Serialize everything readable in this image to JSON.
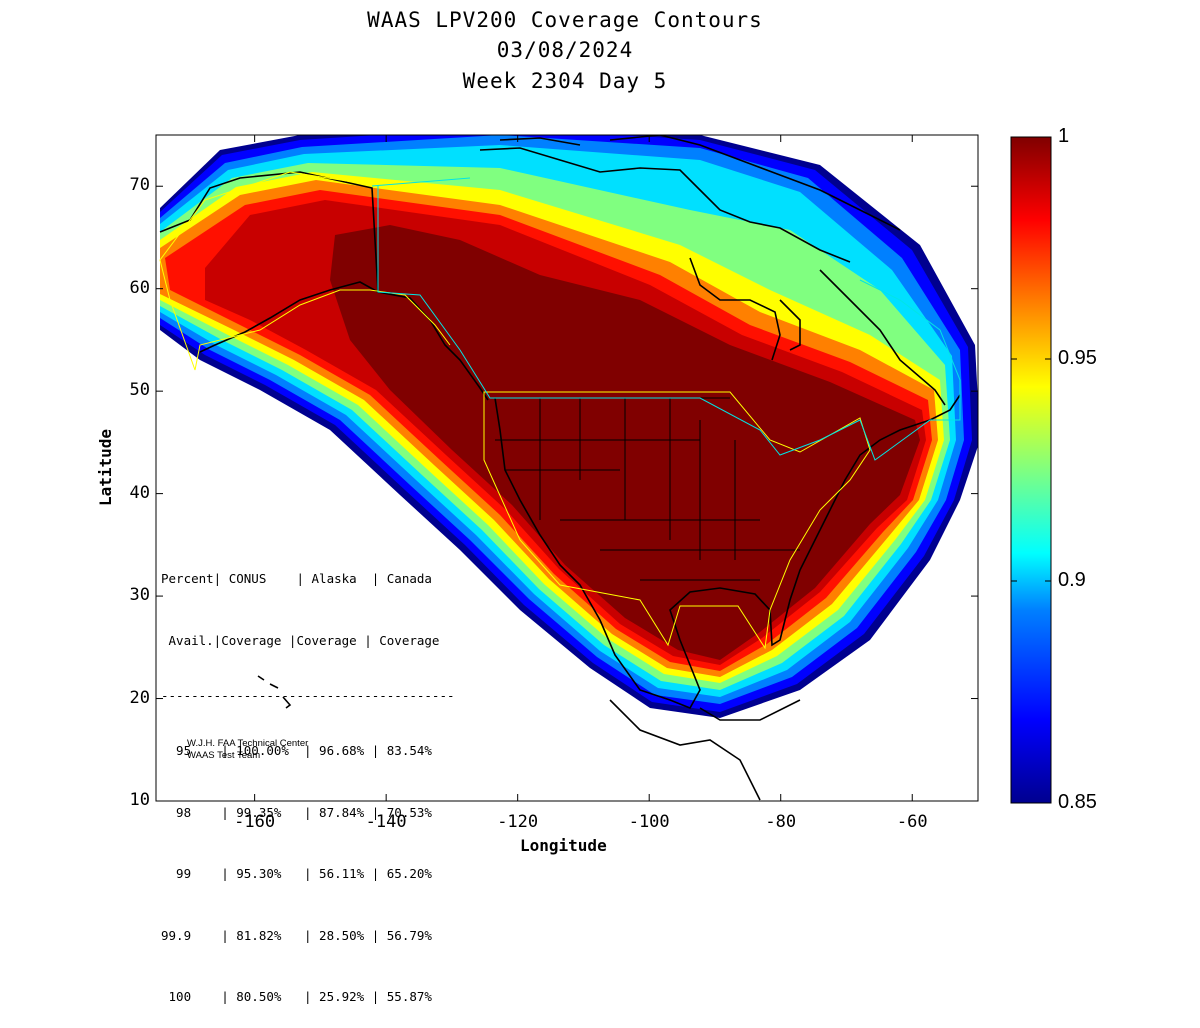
{
  "title": {
    "line1": "WAAS LPV200 Coverage Contours",
    "line2": "03/08/2024",
    "line3": "Week 2304 Day 5"
  },
  "axes": {
    "xlabel": "Longitude",
    "ylabel": "Latitude",
    "xticks": [
      "-160",
      "-140",
      "-120",
      "-100",
      "-80",
      "-60"
    ],
    "yticks": [
      "10",
      "20",
      "30",
      "40",
      "50",
      "60",
      "70"
    ],
    "xlim": [
      -175,
      -50
    ],
    "ylim": [
      10,
      75
    ]
  },
  "colorbar": {
    "range": [
      0.85,
      1
    ],
    "ticks": [
      "1",
      "0.95",
      "0.9",
      "0.85"
    ],
    "colors": [
      "#00008f",
      "#0000ff",
      "#0080ff",
      "#00ffff",
      "#80ff80",
      "#ffff00",
      "#ff8000",
      "#ff0000",
      "#800000"
    ]
  },
  "stats_table": {
    "header1": "Percent| CONUS    | Alaska  | Canada",
    "header2": " Avail.|Coverage |Coverage | Coverage",
    "divider": "---------------------------------------",
    "rows": [
      "  95    | 100.00%  | 96.68% | 83.54%",
      "  98    | 99.35%   | 87.84% | 70.53%",
      "  99    | 95.30%   | 56.11% | 65.20%",
      "99.9    | 81.82%   | 28.50% | 56.79%",
      " 100    | 80.50%   | 25.92% | 55.87%"
    ]
  },
  "credit": {
    "line1": "W.J.H. FAA Technical Center",
    "line2": "WAAS Test Team"
  }
}
